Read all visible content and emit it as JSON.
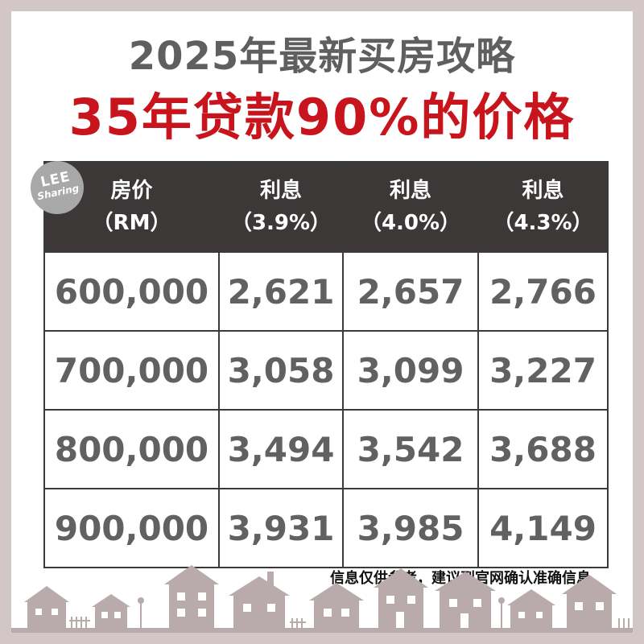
{
  "title": "2025年最新买房攻略",
  "subtitle": "35年贷款90%的价格",
  "badge": {
    "line1": "LEE",
    "line2": "Sharing"
  },
  "table": {
    "headers": [
      {
        "line1": "房价",
        "line2": "（RM）"
      },
      {
        "line1": "利息",
        "line2": "（3.9%）"
      },
      {
        "line1": "利息",
        "line2": "（4.0%）"
      },
      {
        "line1": "利息",
        "line2": "（4.3%）"
      }
    ],
    "rows": [
      {
        "price": "600,000",
        "r39": "2,621",
        "r40": "2,657",
        "r43": "2,766"
      },
      {
        "price": "700,000",
        "r39": "3,058",
        "r40": "3,099",
        "r43": "3,227"
      },
      {
        "price": "800,000",
        "r39": "3,494",
        "r40": "3,542",
        "r43": "3,688"
      },
      {
        "price": "900,000",
        "r39": "3,931",
        "r40": "3,985",
        "r43": "4,149"
      }
    ]
  },
  "note": "信息仅供参考，建议到官网确认准确信息。",
  "colors": {
    "background": "#d2c6c6",
    "title": "#5f5f5f",
    "accent": "#c8141c",
    "header": "#3c3838",
    "cell_text": "#616161",
    "houses": "#b9aaab"
  },
  "icons": {
    "skyline": "house-skyline-icon"
  }
}
